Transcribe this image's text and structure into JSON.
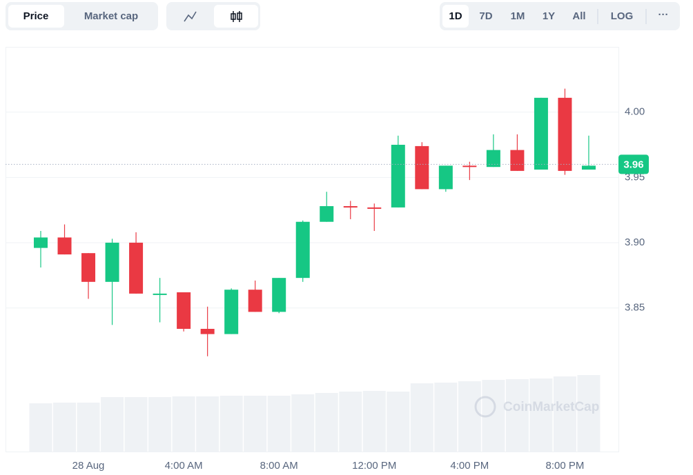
{
  "ui": {
    "tabs": [
      "Price",
      "Market cap"
    ],
    "ranges": [
      "1D",
      "7D",
      "1M",
      "1Y",
      "All"
    ],
    "log": "LOG",
    "more": "···",
    "watermark": "CoinMarketCap"
  },
  "chart_data": {
    "type": "candlestick",
    "categories": [
      null,
      null,
      "28 Aug",
      null,
      null,
      null,
      "4:00 AM",
      null,
      null,
      null,
      "8:00 AM",
      null,
      null,
      null,
      "12:00 PM",
      null,
      null,
      null,
      "4:00 PM",
      null,
      null,
      null,
      "8:00 PM",
      null
    ],
    "open": [
      3.896,
      3.904,
      3.892,
      3.87,
      3.9,
      3.861,
      3.862,
      3.834,
      3.83,
      3.864,
      3.847,
      3.873,
      3.916,
      3.928,
      3.927,
      3.927,
      3.974,
      3.941,
      3.959,
      3.958,
      3.971,
      3.956,
      4.011,
      3.956
    ],
    "close": [
      3.904,
      3.891,
      3.87,
      3.9,
      3.861,
      3.861,
      3.834,
      3.83,
      3.864,
      3.847,
      3.873,
      3.916,
      3.928,
      3.927,
      3.926,
      3.975,
      3.941,
      3.959,
      3.958,
      3.971,
      3.955,
      4.011,
      3.955,
      3.959
    ],
    "high": [
      3.909,
      3.914,
      3.892,
      3.903,
      3.908,
      3.873,
      3.862,
      3.851,
      3.865,
      3.871,
      3.873,
      3.917,
      3.939,
      3.932,
      3.93,
      3.982,
      3.977,
      3.959,
      3.962,
      3.983,
      3.983,
      4.011,
      4.018,
      3.982
    ],
    "low": [
      3.881,
      3.891,
      3.857,
      3.837,
      3.861,
      3.839,
      3.832,
      3.813,
      3.83,
      3.847,
      3.846,
      3.87,
      3.916,
      3.918,
      3.909,
      3.927,
      3.941,
      3.939,
      3.948,
      3.958,
      3.955,
      3.956,
      3.952,
      3.956
    ],
    "volume": [
      70,
      71,
      71,
      79,
      79,
      79,
      80,
      80,
      81,
      81,
      81,
      83,
      85,
      87,
      88,
      87,
      99,
      100,
      102,
      104,
      105,
      106,
      109,
      111
    ],
    "up_color": "#16c784",
    "down_color": "#ea3943",
    "volume_color": "#eff2f5",
    "current_price": {
      "value": 3.96,
      "label": "3.96"
    },
    "ylim": [
      3.74,
      4.05
    ],
    "yticks": [
      3.85,
      {
        "value": 3.9,
        "label": "3.90"
      },
      3.95,
      {
        "value": 4,
        "label": "4.00"
      }
    ],
    "grid": true
  }
}
